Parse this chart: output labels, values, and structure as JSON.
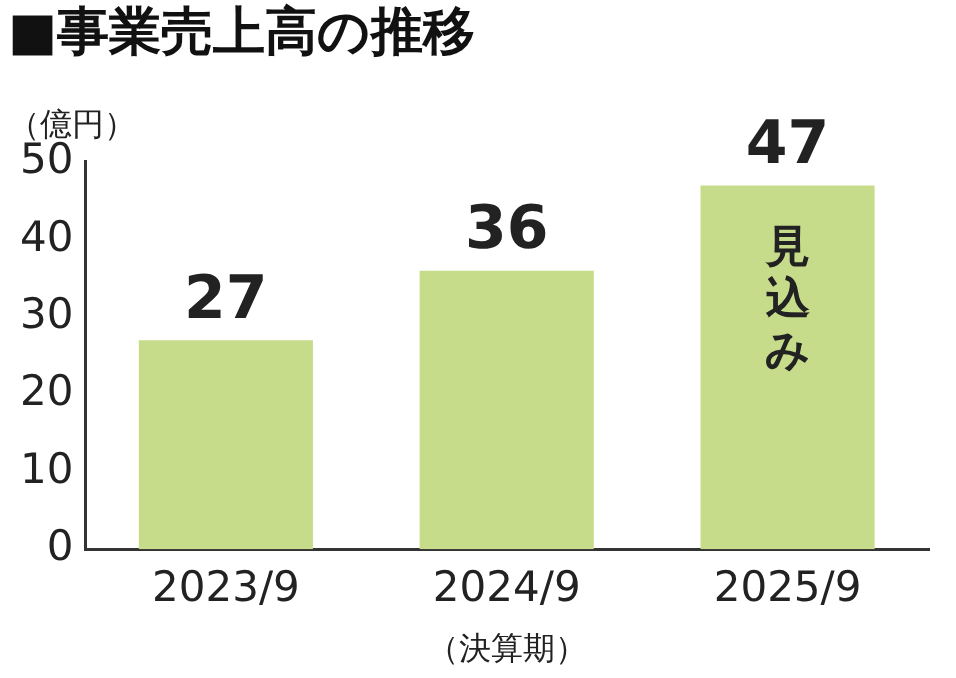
{
  "chart_data": {
    "type": "bar",
    "title": "■事業売上高の推移",
    "ylabel": "（億円）",
    "xlabel": "（決算期）",
    "categories": [
      "2023/9",
      "2024/9",
      "2025/9"
    ],
    "values": [
      27,
      36,
      47
    ],
    "color": "#c6dc8b",
    "ylim": [
      0,
      50
    ],
    "yticks": [
      0,
      10,
      20,
      30,
      40,
      50
    ],
    "grid": false,
    "legend": false,
    "data_labels": true,
    "annotations": [
      "見込み"
    ]
  }
}
